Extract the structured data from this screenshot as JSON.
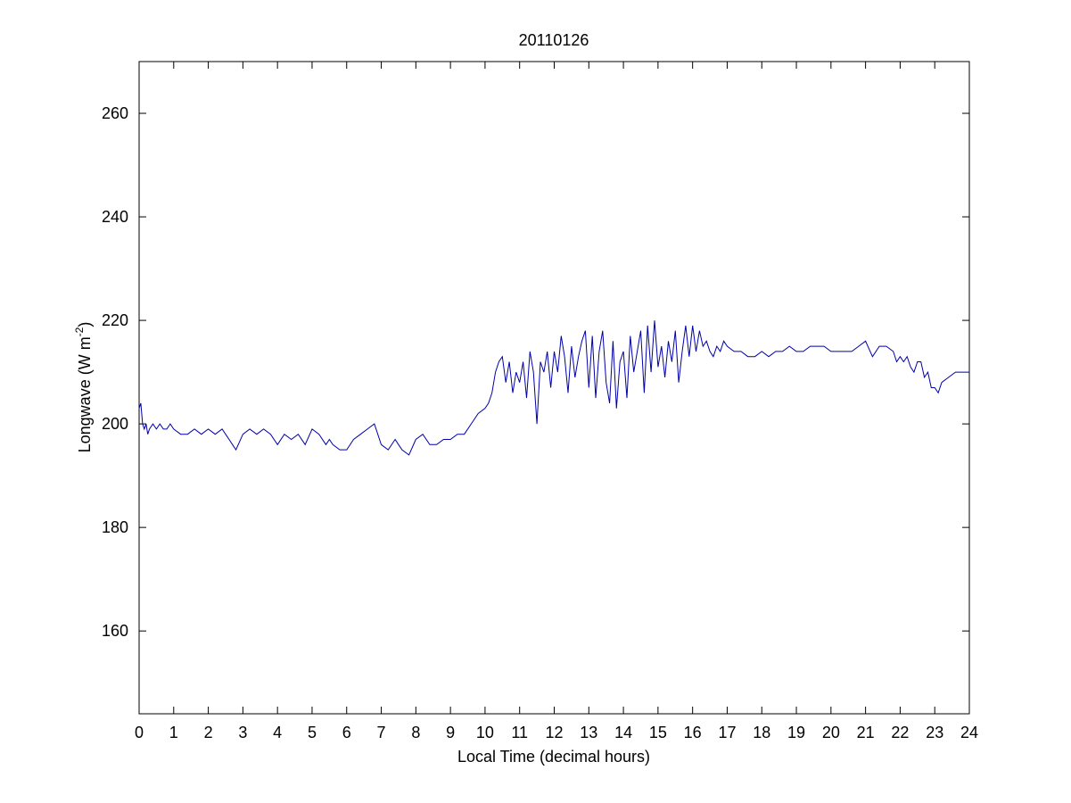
{
  "chart_data": {
    "type": "line",
    "title": "20110126",
    "xlabel": "Local Time (decimal hours)",
    "ylabel_main": "Longwave (W m",
    "ylabel_sup": "-2",
    "ylabel_close": ")",
    "xlim": [
      0,
      24
    ],
    "ylim": [
      144,
      270
    ],
    "xticks": [
      0,
      1,
      2,
      3,
      4,
      5,
      6,
      7,
      8,
      9,
      10,
      11,
      12,
      13,
      14,
      15,
      16,
      17,
      18,
      19,
      20,
      21,
      22,
      23,
      24
    ],
    "yticks": [
      160,
      180,
      200,
      220,
      240,
      260
    ],
    "grid": false,
    "line_color": "#0000aa",
    "series": [
      {
        "x": [
          0.0,
          0.05,
          0.1,
          0.15,
          0.2,
          0.25,
          0.3,
          0.4,
          0.5,
          0.6,
          0.7,
          0.8,
          0.9,
          1.0,
          1.2,
          1.4,
          1.6,
          1.8,
          2.0,
          2.2,
          2.4,
          2.6,
          2.7,
          2.8,
          3.0,
          3.2,
          3.4,
          3.6,
          3.8,
          4.0,
          4.2,
          4.4,
          4.6,
          4.8,
          5.0,
          5.2,
          5.4,
          5.5,
          5.6,
          5.8,
          6.0,
          6.2,
          6.4,
          6.6,
          6.8,
          7.0,
          7.2,
          7.4,
          7.5,
          7.6,
          7.8,
          8.0,
          8.2,
          8.4,
          8.6,
          8.8,
          9.0,
          9.2,
          9.4,
          9.6,
          9.8,
          10.0,
          10.1,
          10.2,
          10.3,
          10.4,
          10.5,
          10.6,
          10.7,
          10.8,
          10.9,
          11.0,
          11.1,
          11.2,
          11.3,
          11.4,
          11.5,
          11.6,
          11.7,
          11.8,
          11.9,
          12.0,
          12.1,
          12.2,
          12.3,
          12.4,
          12.5,
          12.6,
          12.7,
          12.8,
          12.9,
          13.0,
          13.1,
          13.2,
          13.3,
          13.4,
          13.5,
          13.6,
          13.7,
          13.8,
          13.9,
          14.0,
          14.1,
          14.2,
          14.3,
          14.4,
          14.5,
          14.6,
          14.7,
          14.8,
          14.9,
          15.0,
          15.1,
          15.2,
          15.3,
          15.4,
          15.5,
          15.6,
          15.7,
          15.8,
          15.9,
          16.0,
          16.1,
          16.2,
          16.3,
          16.4,
          16.5,
          16.6,
          16.7,
          16.8,
          16.9,
          17.0,
          17.2,
          17.4,
          17.6,
          17.8,
          18.0,
          18.2,
          18.4,
          18.6,
          18.8,
          19.0,
          19.2,
          19.4,
          19.6,
          19.8,
          20.0,
          20.2,
          20.4,
          20.6,
          20.8,
          21.0,
          21.2,
          21.4,
          21.6,
          21.8,
          21.9,
          22.0,
          22.1,
          22.2,
          22.3,
          22.4,
          22.5,
          22.6,
          22.7,
          22.8,
          22.9,
          23.0,
          23.1,
          23.2,
          23.4,
          23.6,
          23.8,
          24.0
        ],
        "y": [
          203,
          204,
          200,
          199,
          200,
          198,
          199,
          200,
          199,
          200,
          199,
          199,
          200,
          199,
          198,
          198,
          199,
          198,
          199,
          198,
          199,
          197,
          196,
          195,
          198,
          199,
          198,
          199,
          198,
          196,
          198,
          197,
          198,
          196,
          199,
          198,
          196,
          197,
          196,
          195,
          195,
          197,
          198,
          199,
          200,
          196,
          195,
          197,
          196,
          195,
          194,
          197,
          198,
          196,
          196,
          197,
          197,
          198,
          198,
          200,
          202,
          203,
          204,
          206,
          210,
          212,
          213,
          208,
          212,
          206,
          210,
          208,
          212,
          205,
          214,
          210,
          200,
          212,
          210,
          214,
          207,
          214,
          210,
          217,
          213,
          206,
          215,
          209,
          213,
          216,
          218,
          207,
          217,
          205,
          214,
          218,
          208,
          204,
          216,
          203,
          212,
          214,
          205,
          217,
          210,
          214,
          218,
          206,
          219,
          210,
          220,
          211,
          215,
          209,
          216,
          212,
          218,
          208,
          214,
          219,
          213,
          219,
          214,
          218,
          215,
          216,
          214,
          213,
          215,
          214,
          216,
          215,
          214,
          214,
          213,
          213,
          214,
          213,
          214,
          214,
          215,
          214,
          214,
          215,
          215,
          215,
          214,
          214,
          214,
          214,
          215,
          216,
          213,
          215,
          215,
          214,
          212,
          213,
          212,
          213,
          211,
          210,
          212,
          212,
          209,
          210,
          207,
          207,
          206,
          208,
          209,
          210,
          210,
          210
        ]
      }
    ]
  }
}
